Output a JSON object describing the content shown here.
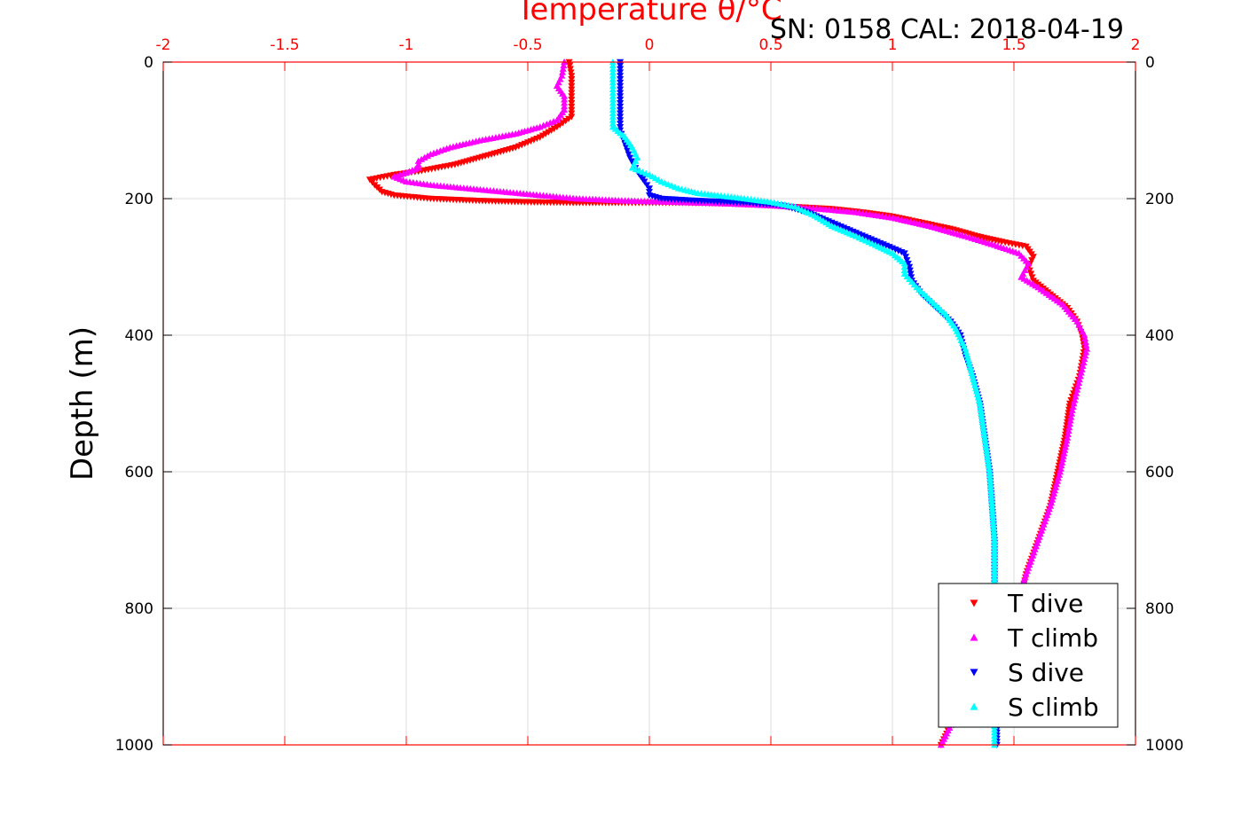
{
  "chart_data": {
    "type": "scatter",
    "title": "Temperature θ/°C",
    "subtitle": "SN: 0158  CAL: 2018-04-19",
    "ylabel": "Depth (m)",
    "xlim": [
      -2,
      2
    ],
    "ylim": [
      0,
      1000
    ],
    "y_reversed": true,
    "x_axis_position": "top",
    "x_ticks": [
      "-2",
      "-1.5",
      "-1",
      "-0.5",
      "0",
      "0.5",
      "1",
      "1.5",
      "2"
    ],
    "y_ticks": [
      "0",
      "200",
      "400",
      "600",
      "800",
      "1000"
    ],
    "grid": true,
    "legend_position": "bottom-right",
    "series": [
      {
        "name": "T dive",
        "color": "#ff0000",
        "marker": "triangle-down",
        "points": [
          [
            -0.33,
            0
          ],
          [
            -0.32,
            20
          ],
          [
            -0.32,
            40
          ],
          [
            -0.32,
            60
          ],
          [
            -0.32,
            80
          ],
          [
            -0.38,
            95
          ],
          [
            -0.45,
            110
          ],
          [
            -0.55,
            125
          ],
          [
            -0.7,
            140
          ],
          [
            -0.8,
            150
          ],
          [
            -0.95,
            160
          ],
          [
            -1.05,
            165
          ],
          [
            -1.15,
            172
          ],
          [
            -1.13,
            180
          ],
          [
            -1.1,
            190
          ],
          [
            -1.05,
            195
          ],
          [
            -0.9,
            200
          ],
          [
            -0.7,
            203
          ],
          [
            -0.5,
            205
          ],
          [
            -0.3,
            206
          ],
          [
            -0.1,
            206
          ],
          [
            0.0,
            206
          ],
          [
            0.15,
            206
          ],
          [
            0.3,
            207
          ],
          [
            0.45,
            209
          ],
          [
            0.6,
            212
          ],
          [
            0.75,
            215
          ],
          [
            0.88,
            220
          ],
          [
            1.0,
            226
          ],
          [
            1.12,
            235
          ],
          [
            1.25,
            245
          ],
          [
            1.35,
            255
          ],
          [
            1.45,
            263
          ],
          [
            1.55,
            270
          ],
          [
            1.58,
            285
          ],
          [
            1.56,
            300
          ],
          [
            1.58,
            320
          ],
          [
            1.65,
            340
          ],
          [
            1.72,
            360
          ],
          [
            1.76,
            380
          ],
          [
            1.78,
            400
          ],
          [
            1.79,
            420
          ],
          [
            1.78,
            440
          ],
          [
            1.77,
            460
          ],
          [
            1.75,
            480
          ],
          [
            1.73,
            500
          ],
          [
            1.71,
            550
          ],
          [
            1.68,
            600
          ],
          [
            1.65,
            650
          ],
          [
            1.6,
            700
          ],
          [
            1.55,
            750
          ],
          [
            1.52,
            800
          ],
          [
            1.45,
            850
          ],
          [
            1.36,
            900
          ],
          [
            1.27,
            950
          ],
          [
            1.2,
            1000
          ]
        ]
      },
      {
        "name": "T climb",
        "color": "#ff00ff",
        "marker": "triangle-up",
        "points": [
          [
            -0.35,
            0
          ],
          [
            -0.36,
            20
          ],
          [
            -0.38,
            35
          ],
          [
            -0.35,
            50
          ],
          [
            -0.35,
            70
          ],
          [
            -0.38,
            85
          ],
          [
            -0.45,
            95
          ],
          [
            -0.55,
            105
          ],
          [
            -0.7,
            115
          ],
          [
            -0.82,
            125
          ],
          [
            -0.9,
            135
          ],
          [
            -0.95,
            145
          ],
          [
            -0.95,
            155
          ],
          [
            -1.0,
            162
          ],
          [
            -1.05,
            168
          ],
          [
            -1.0,
            175
          ],
          [
            -0.9,
            180
          ],
          [
            -0.75,
            185
          ],
          [
            -0.6,
            190
          ],
          [
            -0.45,
            195
          ],
          [
            -0.3,
            200
          ],
          [
            -0.1,
            203
          ],
          [
            0.1,
            205
          ],
          [
            0.3,
            207
          ],
          [
            0.5,
            210
          ],
          [
            0.7,
            215
          ],
          [
            0.85,
            220
          ],
          [
            1.0,
            228
          ],
          [
            1.15,
            240
          ],
          [
            1.3,
            255
          ],
          [
            1.42,
            268
          ],
          [
            1.52,
            280
          ],
          [
            1.56,
            295
          ],
          [
            1.53,
            315
          ],
          [
            1.6,
            330
          ],
          [
            1.7,
            355
          ],
          [
            1.76,
            380
          ],
          [
            1.79,
            400
          ],
          [
            1.8,
            420
          ],
          [
            1.78,
            450
          ],
          [
            1.76,
            480
          ],
          [
            1.74,
            510
          ],
          [
            1.72,
            550
          ],
          [
            1.69,
            600
          ],
          [
            1.65,
            650
          ],
          [
            1.6,
            700
          ],
          [
            1.55,
            750
          ],
          [
            1.5,
            800
          ],
          [
            1.43,
            850
          ],
          [
            1.35,
            900
          ],
          [
            1.27,
            950
          ],
          [
            1.2,
            1000
          ]
        ]
      },
      {
        "name": "S dive",
        "color": "#0000ff",
        "marker": "triangle-down",
        "points": [
          [
            -0.12,
            0
          ],
          [
            -0.12,
            20
          ],
          [
            -0.12,
            40
          ],
          [
            -0.12,
            60
          ],
          [
            -0.12,
            80
          ],
          [
            -0.12,
            100
          ],
          [
            -0.1,
            120
          ],
          [
            -0.08,
            140
          ],
          [
            -0.05,
            160
          ],
          [
            -0.02,
            175
          ],
          [
            0.0,
            185
          ],
          [
            0.0,
            195
          ],
          [
            0.05,
            200
          ],
          [
            0.2,
            203
          ],
          [
            0.4,
            206
          ],
          [
            0.55,
            210
          ],
          [
            0.65,
            220
          ],
          [
            0.75,
            235
          ],
          [
            0.85,
            250
          ],
          [
            0.95,
            265
          ],
          [
            1.05,
            280
          ],
          [
            1.07,
            300
          ],
          [
            1.08,
            320
          ],
          [
            1.12,
            340
          ],
          [
            1.18,
            360
          ],
          [
            1.24,
            380
          ],
          [
            1.28,
            400
          ],
          [
            1.3,
            430
          ],
          [
            1.33,
            460
          ],
          [
            1.36,
            500
          ],
          [
            1.38,
            550
          ],
          [
            1.4,
            600
          ],
          [
            1.41,
            650
          ],
          [
            1.42,
            700
          ],
          [
            1.42,
            800
          ],
          [
            1.43,
            900
          ],
          [
            1.43,
            1000
          ]
        ]
      },
      {
        "name": "S climb",
        "color": "#00ffff",
        "marker": "triangle-up",
        "points": [
          [
            -0.15,
            0
          ],
          [
            -0.15,
            20
          ],
          [
            -0.15,
            40
          ],
          [
            -0.15,
            60
          ],
          [
            -0.15,
            80
          ],
          [
            -0.15,
            95
          ],
          [
            -0.1,
            110
          ],
          [
            -0.07,
            125
          ],
          [
            -0.05,
            140
          ],
          [
            -0.07,
            155
          ],
          [
            0.0,
            165
          ],
          [
            0.05,
            175
          ],
          [
            0.12,
            185
          ],
          [
            0.2,
            192
          ],
          [
            0.35,
            198
          ],
          [
            0.5,
            205
          ],
          [
            0.6,
            212
          ],
          [
            0.68,
            225
          ],
          [
            0.75,
            240
          ],
          [
            0.85,
            255
          ],
          [
            0.93,
            268
          ],
          [
            1.0,
            280
          ],
          [
            1.05,
            295
          ],
          [
            1.05,
            310
          ],
          [
            1.1,
            330
          ],
          [
            1.16,
            350
          ],
          [
            1.22,
            370
          ],
          [
            1.26,
            390
          ],
          [
            1.3,
            420
          ],
          [
            1.33,
            460
          ],
          [
            1.36,
            500
          ],
          [
            1.38,
            550
          ],
          [
            1.4,
            600
          ],
          [
            1.41,
            650
          ],
          [
            1.42,
            700
          ],
          [
            1.42,
            800
          ],
          [
            1.42,
            900
          ],
          [
            1.42,
            1000
          ]
        ]
      }
    ]
  }
}
